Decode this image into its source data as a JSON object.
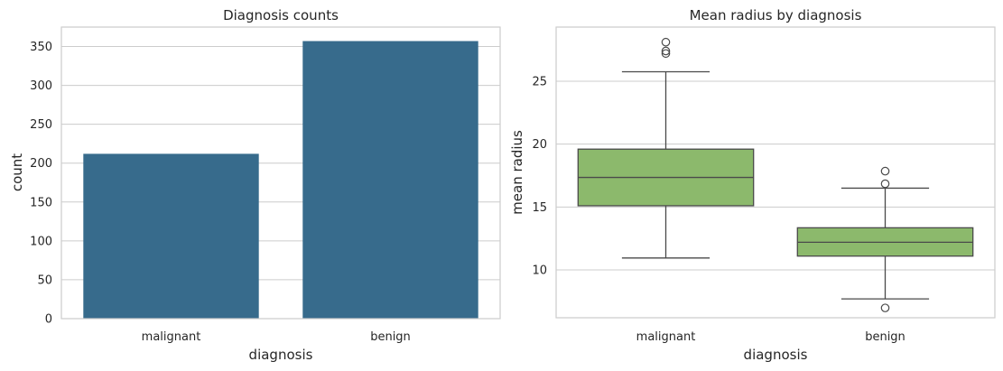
{
  "chart_data": [
    {
      "type": "bar",
      "title": "Diagnosis counts",
      "xlabel": "diagnosis",
      "ylabel": "count",
      "categories": [
        "malignant",
        "benign"
      ],
      "values": [
        212,
        357
      ],
      "ylim": [
        0,
        375
      ],
      "yticks": [
        0,
        50,
        100,
        150,
        200,
        250,
        300,
        350
      ],
      "grid": true,
      "color": "#376b8c"
    },
    {
      "type": "box",
      "title": "Mean radius by diagnosis",
      "xlabel": "diagnosis",
      "ylabel": "mean radius",
      "categories": [
        "malignant",
        "benign"
      ],
      "boxes": [
        {
          "whislo": 10.95,
          "q1": 15.1,
          "median": 17.35,
          "q3": 19.6,
          "whishi": 25.75,
          "fliers": [
            27.2,
            27.4,
            28.1
          ]
        },
        {
          "whislo": 7.7,
          "q1": 11.1,
          "median": 12.2,
          "q3": 13.35,
          "whishi": 16.5,
          "fliers": [
            6.98,
            16.85,
            17.85
          ]
        }
      ],
      "ylim": [
        6.2,
        29.3
      ],
      "yticks": [
        10,
        15,
        20,
        25
      ],
      "grid": true,
      "color": "#8cb96c"
    }
  ]
}
